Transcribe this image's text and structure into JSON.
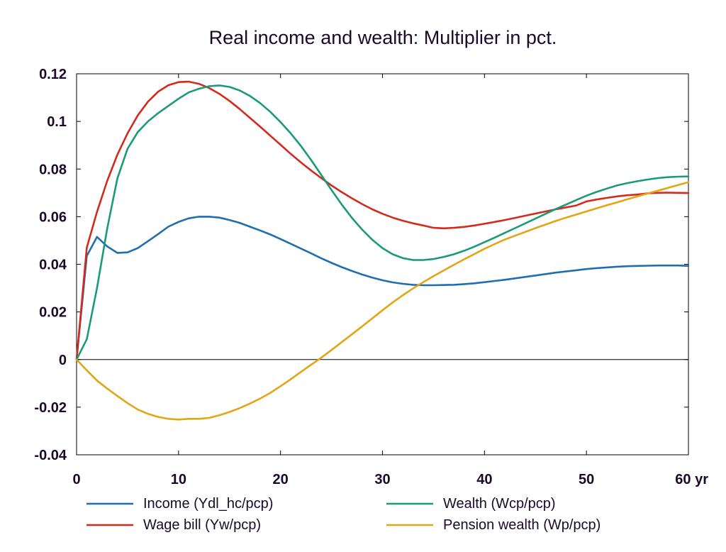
{
  "chart_data": {
    "type": "line",
    "title": "Real income and wealth: Multiplier in pct.",
    "xlabel": "",
    "ylabel": "",
    "xlim": [
      0,
      60
    ],
    "ylim": [
      -0.04,
      0.12
    ],
    "x_ticks": [
      0,
      10,
      20,
      30,
      40,
      50,
      60
    ],
    "x_tick_labels": [
      "0",
      "10",
      "20",
      "30",
      "40",
      "50",
      "60 yr"
    ],
    "y_ticks": [
      -0.04,
      -0.02,
      0,
      0.02,
      0.04,
      0.06,
      0.08,
      0.1,
      0.12
    ],
    "y_tick_labels": [
      "-0.04",
      "-0.02",
      "0",
      "0.02",
      "0.04",
      "0.06",
      "0.08",
      "0.1",
      "0.12"
    ],
    "grid": false,
    "legend_position": "bottom",
    "x": [
      0,
      1,
      2,
      3,
      4,
      5,
      6,
      7,
      8,
      9,
      10,
      11,
      12,
      13,
      14,
      15,
      16,
      17,
      18,
      19,
      20,
      21,
      22,
      23,
      24,
      25,
      26,
      27,
      28,
      29,
      30,
      31,
      32,
      33,
      34,
      35,
      36,
      37,
      38,
      39,
      40,
      41,
      42,
      43,
      44,
      45,
      46,
      47,
      48,
      49,
      50,
      51,
      52,
      53,
      54,
      55,
      56,
      57,
      58,
      59,
      60
    ],
    "series": [
      {
        "name": "Income (Ydl_hc/pcp)",
        "color": "#1f6fb0",
        "values": [
          0,
          0.0435,
          0.0515,
          0.0475,
          0.0448,
          0.045,
          0.0468,
          0.0497,
          0.0527,
          0.0558,
          0.0578,
          0.0593,
          0.06,
          0.06,
          0.0596,
          0.0586,
          0.0574,
          0.0558,
          0.0542,
          0.0525,
          0.0506,
          0.0486,
          0.0466,
          0.0446,
          0.0425,
          0.0406,
          0.0388,
          0.0372,
          0.0357,
          0.0344,
          0.0333,
          0.0324,
          0.0318,
          0.0314,
          0.0312,
          0.0312,
          0.0313,
          0.0314,
          0.0317,
          0.032,
          0.0325,
          0.033,
          0.0335,
          0.0341,
          0.0347,
          0.0353,
          0.0359,
          0.0365,
          0.037,
          0.0375,
          0.038,
          0.0384,
          0.0387,
          0.039,
          0.0392,
          0.0393,
          0.0394,
          0.0395,
          0.0395,
          0.0395,
          0.0393
        ]
      },
      {
        "name": "Wage bill (Yw/pcp)",
        "color": "#d42a1e",
        "values": [
          0,
          0.047,
          0.062,
          0.075,
          0.086,
          0.095,
          0.1025,
          0.1083,
          0.1125,
          0.1152,
          0.1165,
          0.1167,
          0.1158,
          0.114,
          0.1116,
          0.1086,
          0.1052,
          0.1015,
          0.0978,
          0.094,
          0.0902,
          0.0864,
          0.0828,
          0.0794,
          0.0762,
          0.0731,
          0.0703,
          0.0677,
          0.0653,
          0.0631,
          0.0612,
          0.0596,
          0.0583,
          0.0572,
          0.0563,
          0.0553,
          0.0551,
          0.0553,
          0.0557,
          0.0563,
          0.057,
          0.0578,
          0.0586,
          0.0595,
          0.0604,
          0.0613,
          0.0622,
          0.0631,
          0.0639,
          0.0647,
          0.0664,
          0.0672,
          0.0679,
          0.0685,
          0.069,
          0.0693,
          0.0698,
          0.07,
          0.0701,
          0.07,
          0.0699
        ]
      },
      {
        "name": "Wealth (Wcp/pcp)",
        "color": "#1a9a76",
        "values": [
          0,
          0.0085,
          0.03,
          0.055,
          0.076,
          0.0885,
          0.0955,
          0.1,
          0.1035,
          0.1065,
          0.1095,
          0.1122,
          0.1137,
          0.1148,
          0.1151,
          0.1145,
          0.113,
          0.1107,
          0.1077,
          0.104,
          0.0997,
          0.095,
          0.0897,
          0.0838,
          0.0775,
          0.0712,
          0.0651,
          0.0595,
          0.0546,
          0.0503,
          0.0468,
          0.0442,
          0.0426,
          0.0418,
          0.0418,
          0.0422,
          0.0431,
          0.0442,
          0.0457,
          0.0474,
          0.0493,
          0.0512,
          0.0532,
          0.0552,
          0.0572,
          0.0592,
          0.0612,
          0.0632,
          0.0651,
          0.067,
          0.0688,
          0.0704,
          0.0718,
          0.0731,
          0.0741,
          0.0749,
          0.0756,
          0.0762,
          0.0766,
          0.0768,
          0.0769
        ]
      },
      {
        "name": "Pension wealth (Wp/pcp)",
        "color": "#e2a614",
        "values": [
          0,
          -0.0045,
          -0.0088,
          -0.0122,
          -0.0153,
          -0.0183,
          -0.021,
          -0.0228,
          -0.0241,
          -0.0249,
          -0.0252,
          -0.0249,
          -0.0249,
          -0.0245,
          -0.0234,
          -0.022,
          -0.0204,
          -0.0185,
          -0.0164,
          -0.014,
          -0.0112,
          -0.0083,
          -0.0052,
          -0.0022,
          0.0008,
          0.004,
          0.0073,
          0.0106,
          0.0139,
          0.0173,
          0.0207,
          0.024,
          0.027,
          0.0299,
          0.0325,
          0.035,
          0.0374,
          0.0398,
          0.0421,
          0.0443,
          0.0465,
          0.0485,
          0.0504,
          0.052,
          0.0536,
          0.0552,
          0.0567,
          0.0582,
          0.0596,
          0.0609,
          0.0622,
          0.0635,
          0.0648,
          0.066,
          0.0673,
          0.0685,
          0.0697,
          0.0709,
          0.0721,
          0.0733,
          0.0745
        ]
      }
    ]
  }
}
